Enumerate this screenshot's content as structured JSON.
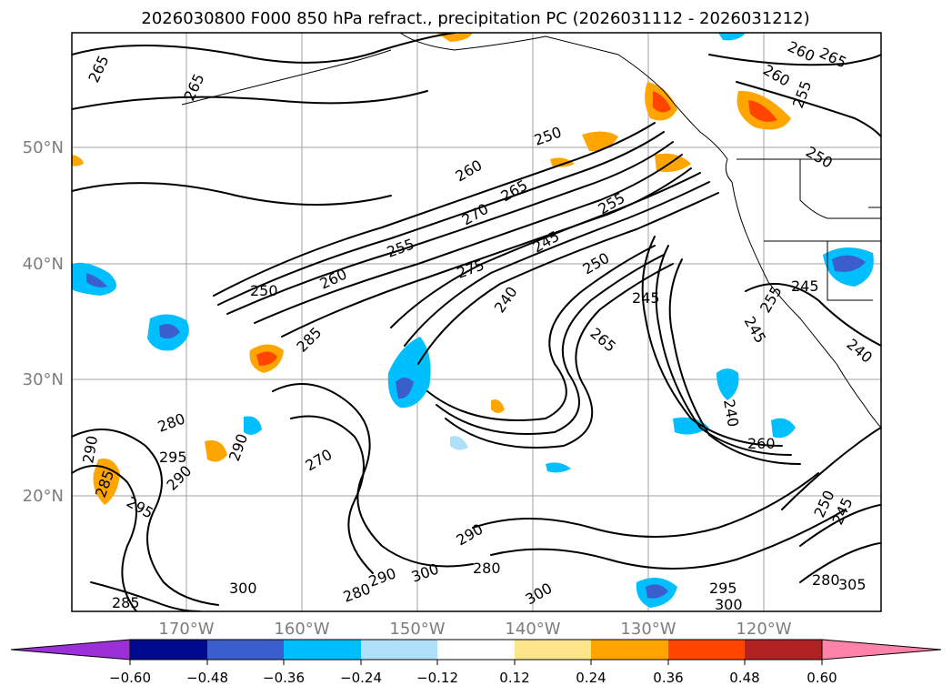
{
  "title": "2026030800 F000 850 hPa refract., precipitation PC (2026031112 - 2026031212)",
  "map": {
    "lat_labels": [
      "50°N",
      "40°N",
      "30°N",
      "20°N"
    ],
    "lon_labels": [
      "170°W",
      "160°W",
      "150°W",
      "140°W",
      "130°W",
      "120°W"
    ],
    "contour_labels": [
      "265",
      "265",
      "260",
      "265",
      "260",
      "255",
      "250",
      "250",
      "260",
      "265",
      "270",
      "255",
      "250",
      "260",
      "255",
      "245",
      "275",
      "250",
      "240",
      "245",
      "265",
      "285",
      "245",
      "255",
      "245",
      "240",
      "240",
      "260",
      "280",
      "295",
      "290",
      "290",
      "270",
      "295",
      "290",
      "300",
      "285",
      "280",
      "290",
      "280",
      "300",
      "290",
      "295",
      "300",
      "250",
      "245",
      "280",
      "305",
      "300",
      "285"
    ]
  },
  "colorbar": {
    "tick_labels": [
      "−0.60",
      "−0.48",
      "−0.36",
      "−0.24",
      "−0.12",
      "0.12",
      "0.24",
      "0.36",
      "0.48",
      "0.60"
    ],
    "colors": [
      "#9b30d8",
      "#000a8c",
      "#3a5fcd",
      "#00bfff",
      "#afe0fa",
      "#ffffff",
      "#fde68a",
      "#ffa500",
      "#ff4500",
      "#b22222",
      "#ff82a8"
    ]
  }
}
